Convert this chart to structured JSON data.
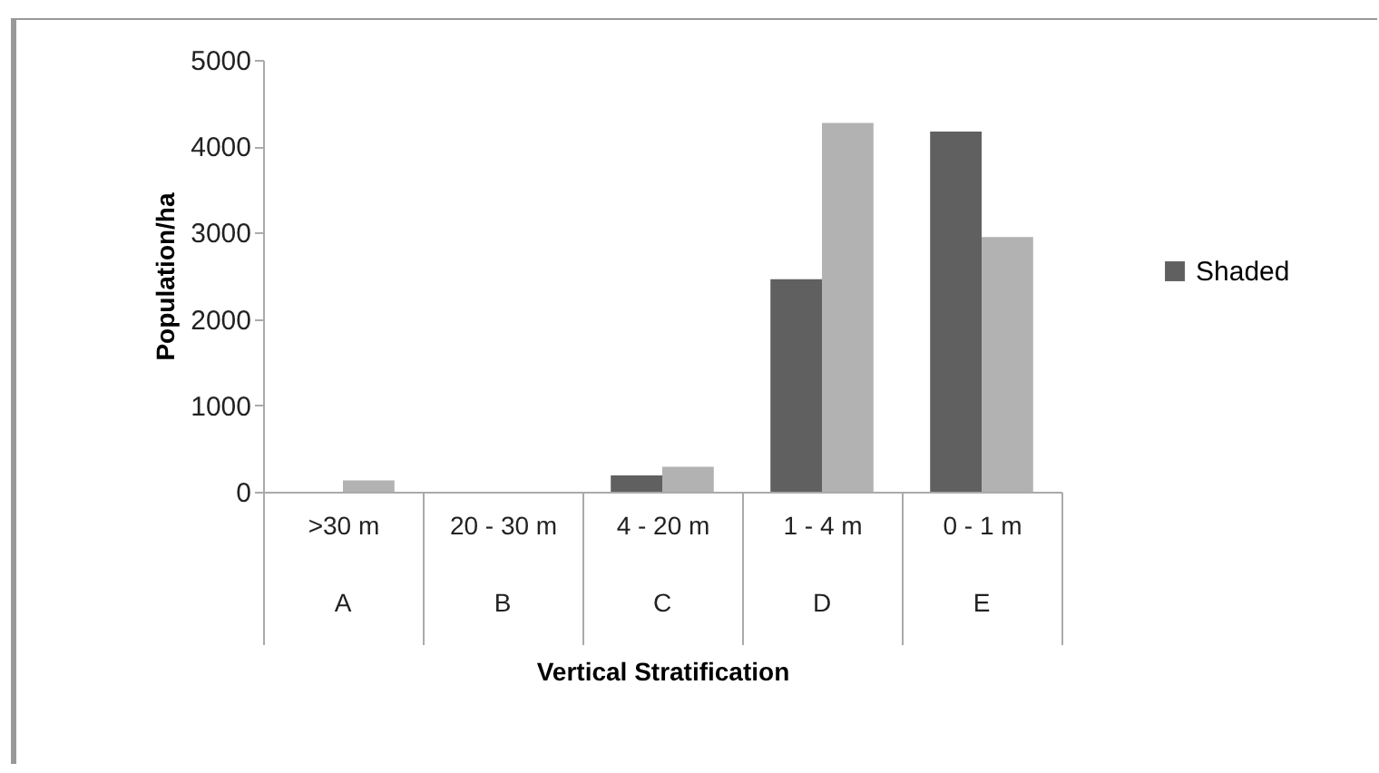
{
  "chart_data": {
    "type": "bar",
    "xlabel": "Vertical Stratification",
    "ylabel": "Population/ha",
    "categories": [
      ">30 m",
      "20 - 30 m",
      "4  - 20 m",
      "1  -  4 m",
      "0 - 1 m"
    ],
    "series": [
      {
        "name": "Shaded",
        "color": "#606060",
        "values": [
          0,
          0,
          190,
          2460,
          4170
        ]
      },
      {
        "color": "#b2b2b2",
        "values": [
          130,
          0,
          290,
          4270,
          2950
        ]
      }
    ],
    "ylim": [
      0,
      5000
    ],
    "yticks": [
      0,
      1000,
      2000,
      3000,
      4000,
      5000
    ],
    "grid": false,
    "legend": "right",
    "annotations": [
      "A",
      "B",
      "C",
      "D",
      "E"
    ]
  }
}
